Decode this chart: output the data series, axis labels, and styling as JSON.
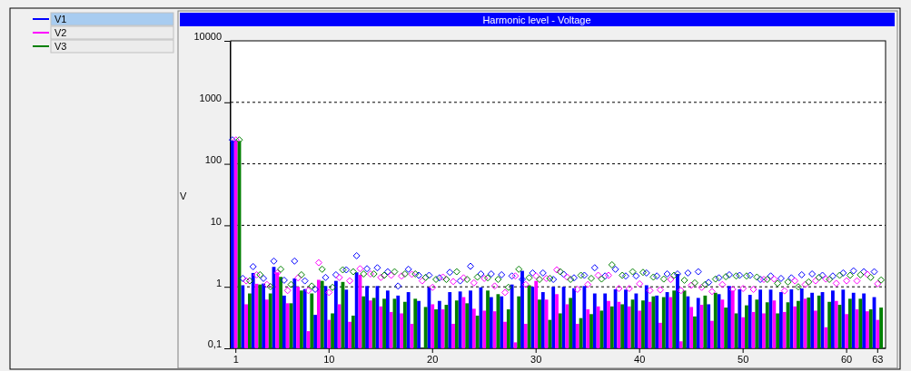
{
  "chart_data": {
    "type": "bar",
    "title": "Harmonic level - Voltage",
    "ylabel": "V",
    "log": true,
    "grid": "y",
    "legend": "left",
    "marker": "diamond",
    "categories": [
      "1",
      null,
      null,
      null,
      null,
      null,
      null,
      null,
      null,
      "10",
      null,
      null,
      null,
      null,
      null,
      null,
      null,
      null,
      null,
      "20",
      null,
      null,
      null,
      null,
      null,
      null,
      null,
      null,
      null,
      "30",
      null,
      null,
      null,
      null,
      null,
      null,
      null,
      null,
      null,
      "40",
      null,
      null,
      null,
      null,
      null,
      null,
      null,
      null,
      null,
      "50",
      null,
      null,
      null,
      null,
      null,
      null,
      null,
      null,
      null,
      "60",
      null,
      null,
      "63"
    ],
    "ylim": [
      0.1,
      10000
    ],
    "yticks": [
      {
        "value": 0.1,
        "label": "0,1"
      },
      1,
      10,
      100,
      1000,
      10000
    ],
    "series": [
      {
        "name": "V1",
        "color": "#0000ff",
        "values": [
          240,
          1.06,
          1.68,
          1.13,
          2.11,
          0.72,
          1.37,
          0.92,
          0.35,
          1.03,
          1.25,
          0.9,
          1.72,
          1.03,
          1.03,
          0.87,
          0.72,
          0.82,
          0.59,
          0.98,
          0.59,
          0.82,
          0.84,
          0.87,
          0.98,
          0.68,
          0.7,
          1.09,
          1.82,
          1.0,
          0.82,
          1.0,
          1.0,
          0.95,
          1.03,
          0.78,
          0.78,
          0.91,
          0.9,
          0.78,
          1.06,
          0.72,
          0.82,
          1.62,
          0.7,
          0.66,
          0.52,
          0.76,
          1.03,
          0.91,
          0.74,
          0.9,
          0.9,
          0.82,
          0.91,
          0.94,
          0.8,
          0.82,
          0.87,
          0.9,
          0.8,
          0.78,
          0.68
        ]
      },
      {
        "name": "V2",
        "color": "#ff00ff",
        "values": [
          240,
          0.52,
          1.12,
          0.62,
          1.72,
          0.54,
          1.0,
          0.19,
          1.3,
          0.29,
          0.52,
          0.27,
          1.57,
          0.6,
          0.48,
          0.39,
          0.37,
          0.25,
          null,
          0.52,
          0.43,
          0.25,
          0.68,
          0.44,
          0.41,
          0.4,
          0.27,
          0.125,
          0.25,
          1.25,
          0.62,
          0.76,
          0.52,
          0.25,
          0.43,
          0.48,
          0.59,
          0.57,
          0.48,
          0.41,
          0.57,
          0.26,
          0.68,
          0.13,
          0.47,
          0.51,
          0.28,
          0.62,
          0.87,
          0.32,
          0.39,
          0.37,
          0.6,
          0.39,
          0.48,
          0.64,
          0.41,
          0.22,
          0.59,
          0.36,
          0.43,
          0.4,
          0.29
        ]
      },
      {
        "name": "V3",
        "color": "#008000",
        "values": [
          235,
          0.78,
          1.09,
          0.78,
          1.45,
          0.54,
          0.87,
          0.78,
          1.25,
          0.37,
          1.2,
          0.34,
          0.7,
          0.66,
          0.64,
          0.64,
          0.57,
          0.64,
          0.47,
          0.43,
          0.51,
          0.6,
          0.54,
          0.34,
          0.87,
          0.76,
          0.43,
          0.7,
          1.06,
          0.62,
          0.29,
          0.37,
          0.66,
          0.31,
          0.36,
          0.41,
          0.48,
          0.52,
          0.62,
          0.6,
          0.7,
          0.68,
          0.87,
          0.87,
          0.33,
          0.72,
          0.8,
          0.46,
          0.37,
          0.5,
          0.62,
          0.56,
          0.37,
          0.56,
          0.59,
          0.67,
          0.72,
          0.57,
          0.51,
          0.64,
          0.64,
          0.43,
          0.46
        ]
      },
      {
        "type": "scatter",
        "color": "#0000ff",
        "values": [
          245,
          1.37,
          2.13,
          1.37,
          2.62,
          1.28,
          2.62,
          1.25,
          0.91,
          1.42,
          1.57,
          1.89,
          3.2,
          1.97,
          2.04,
          1.76,
          1.03,
          1.93,
          1.54,
          1.54,
          1.4,
          1.72,
          1.25,
          2.16,
          1.62,
          1.62,
          1.57,
          1.5,
          1.32,
          1.68,
          1.68,
          1.32,
          1.6,
          1.4,
          1.54,
          2.04,
          1.5,
          1.93,
          1.5,
          1.5,
          1.68,
          1.5,
          1.62,
          1.62,
          1.68,
          1.76,
          1.18,
          1.4,
          1.57,
          1.54,
          1.54,
          1.32,
          1.5,
          1.37,
          1.4,
          1.57,
          1.62,
          1.54,
          1.5,
          1.68,
          1.82,
          1.76,
          1.76
        ]
      },
      {
        "type": "scatter",
        "color": "#ff00ff",
        "values": [
          245,
          1.25,
          1.57,
          1.09,
          1.68,
          0.87,
          1.4,
          0.87,
          2.47,
          0.81,
          1.42,
          1.25,
          1.97,
          1.62,
          1.42,
          1.54,
          1.5,
          1.6,
          1.25,
          0.98,
          1.44,
          1.22,
          1.4,
          1.16,
          1.37,
          1.03,
          0.81,
          1.5,
          1.09,
          1.5,
          1.37,
          1.89,
          1.44,
          0.91,
          1.09,
          1.54,
          1.54,
          0.94,
          0.94,
          1.12,
          0.87,
          0.89,
          1.32,
          0.87,
          1.06,
          0.98,
          0.84,
          1.09,
          0.91,
          0.94,
          0.91,
          1.32,
          1.34,
          0.86,
          1.25,
          1.09,
          1.25,
          1.34,
          1.14,
          1.25,
          1.25,
          1.6,
          1.12
        ]
      },
      {
        "type": "scatter",
        "color": "#008000",
        "values": [
          245,
          1.25,
          1.57,
          1.01,
          1.93,
          1.09,
          1.57,
          1.03,
          1.93,
          0.98,
          1.89,
          1.76,
          1.62,
          1.62,
          1.54,
          1.76,
          1.62,
          1.62,
          1.42,
          1.32,
          1.32,
          1.76,
          1.32,
          1.44,
          1.4,
          1.32,
          0.98,
          1.93,
          1.4,
          1.32,
          1.37,
          1.76,
          1.32,
          1.54,
          1.37,
          1.34,
          2.28,
          1.54,
          1.76,
          1.72,
          1.44,
          1.34,
          1.54,
          1.28,
          1.16,
          1.09,
          1.34,
          1.46,
          1.5,
          1.5,
          1.44,
          1.32,
          1.14,
          1.2,
          1.0,
          1.2,
          1.42,
          1.32,
          1.54,
          1.54,
          1.57,
          1.42,
          1.29
        ]
      }
    ]
  }
}
